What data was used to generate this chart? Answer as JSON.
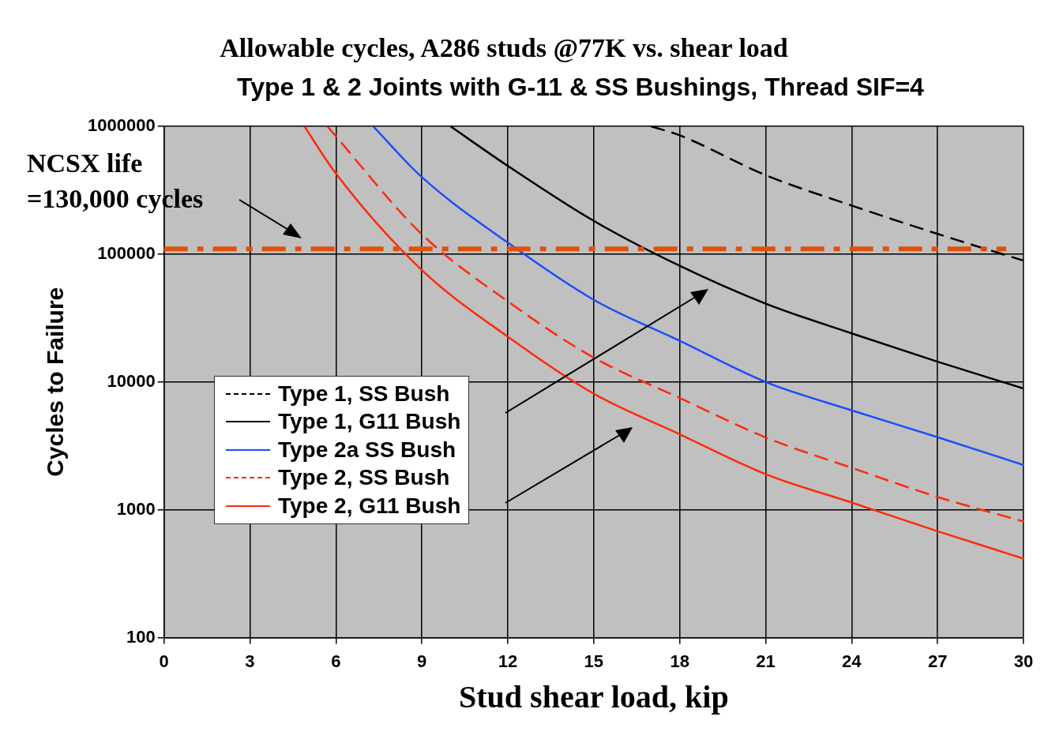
{
  "chart_data": {
    "type": "line",
    "title": "Allowable cycles, A286 studs @77K vs. shear load",
    "subtitle": "Type 1 & 2 Joints with G-11 & SS Bushings, Thread SIF=4",
    "xlabel": "Stud shear load, kip",
    "ylabel": "Cycles to Failure",
    "xlim": [
      0,
      30
    ],
    "xticks": [
      0,
      3,
      6,
      9,
      12,
      15,
      18,
      21,
      24,
      27,
      30
    ],
    "ylim": [
      100,
      1000000
    ],
    "yticks": [
      100,
      1000,
      10000,
      100000,
      1000000
    ],
    "log": "y",
    "grid": true,
    "legend": "left",
    "marker": "none",
    "series": [
      {
        "name": "Type 1, SS Bush",
        "color": "#000000",
        "line_style": "dashed",
        "x": [
          17,
          18,
          21,
          24,
          27,
          30
        ],
        "values": [
          1000000,
          850000,
          415000,
          240000,
          144000,
          89000
        ]
      },
      {
        "name": "Type 1, G11 Bush",
        "color": "#000000",
        "line_style": "solid",
        "x": [
          10,
          12,
          15,
          18,
          21,
          24,
          27,
          30
        ],
        "values": [
          1000000,
          490000,
          182000,
          81000,
          41000,
          24000,
          14400,
          8900
        ]
      },
      {
        "name": "Type 2a SS Bush",
        "color": "#1a4dff",
        "line_style": "solid",
        "x": [
          7.3,
          9,
          12,
          15,
          18,
          21,
          24,
          27,
          30
        ],
        "values": [
          1000000,
          400000,
          123000,
          43900,
          21000,
          10000,
          6000,
          3700,
          2240
        ]
      },
      {
        "name": "Type 2, SS Bush",
        "color": "#ff2a0a",
        "line_style": "dashed",
        "x": [
          5.7,
          9,
          12,
          15,
          18,
          21,
          24,
          27,
          30
        ],
        "values": [
          1000000,
          143000,
          42700,
          15500,
          7500,
          3680,
          2130,
          1260,
          810
        ]
      },
      {
        "name": "Type 2, G11 Bush",
        "color": "#ff2a0a",
        "line_style": "solid",
        "x": [
          4.9,
          6,
          9,
          12,
          15,
          18,
          21,
          24,
          27,
          30
        ],
        "values": [
          1000000,
          427000,
          75000,
          22600,
          8100,
          3900,
          1900,
          1140,
          680,
          415
        ]
      }
    ],
    "ref_lines": [
      {
        "axis": "y",
        "value": 110000,
        "color": "#e0500a",
        "line_style": "dashed"
      }
    ],
    "annotations": [
      "NCSX life\n=130,000 cycles"
    ]
  }
}
